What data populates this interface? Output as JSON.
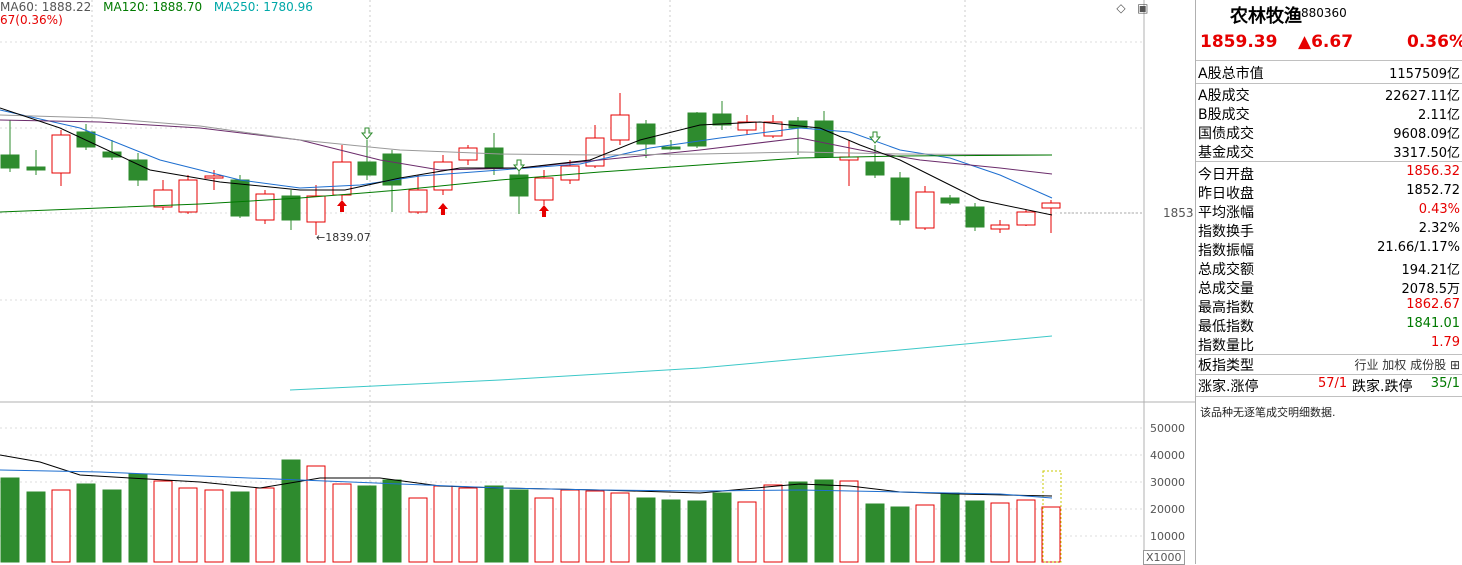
{
  "ma_legend": {
    "ma60": "MA60: 1888.22",
    "ma120": "MA120: 1888.70",
    "ma250": "MA250: 1780.96",
    "sub_line": "67(0.36%)",
    "ma60_color": "#555555",
    "ma120_color": "#007a00",
    "ma250_color": "#00a8a8"
  },
  "chart": {
    "price_label": "1853",
    "lowest_marker": "1839.07",
    "volume_axis": [
      "50000",
      "40000",
      "30000",
      "20000",
      "10000"
    ],
    "x_unit": "X1000"
  },
  "panel": {
    "name": "农林牧渔",
    "code": "880360",
    "price": "1859.39",
    "change": "▲6.67",
    "change_pct": "0.36%",
    "market_rows": [
      {
        "label": "A股总市值",
        "value": "1157509亿"
      },
      {
        "label": "A股成交",
        "value": "22627.11亿"
      },
      {
        "label": "B股成交",
        "value": "2.11亿"
      },
      {
        "label": "国债成交",
        "value": "9608.09亿"
      },
      {
        "label": "基金成交",
        "value": "3317.50亿"
      }
    ],
    "index_rows": [
      {
        "label": "今日开盘",
        "value": "1856.32",
        "color": "red"
      },
      {
        "label": "昨日收盘",
        "value": "1852.72",
        "color": "blk"
      },
      {
        "label": "平均涨幅",
        "value": "0.43%",
        "color": "red"
      },
      {
        "label": "指数换手",
        "value": "2.32%",
        "color": "blk"
      },
      {
        "label": "指数振幅",
        "value": "21.66/1.17%",
        "color": "blk"
      },
      {
        "label": "总成交额",
        "value": "194.21亿",
        "color": "blk"
      },
      {
        "label": "总成交量",
        "value": "2078.5万",
        "color": "blk"
      },
      {
        "label": "最高指数",
        "value": "1862.67",
        "color": "red"
      },
      {
        "label": "最低指数",
        "value": "1841.01",
        "color": "green"
      },
      {
        "label": "指数量比",
        "value": "1.79",
        "color": "red"
      }
    ],
    "sector_type_label": "板指类型",
    "sector_type_values": "行业 加权 成份股",
    "rise_label": "涨家.涨停",
    "rise_value": "57/1",
    "fall_label": "跌家.跌停",
    "fall_value": "35/1",
    "footnote": "该品种无逐笔成交明细数据."
  }
}
